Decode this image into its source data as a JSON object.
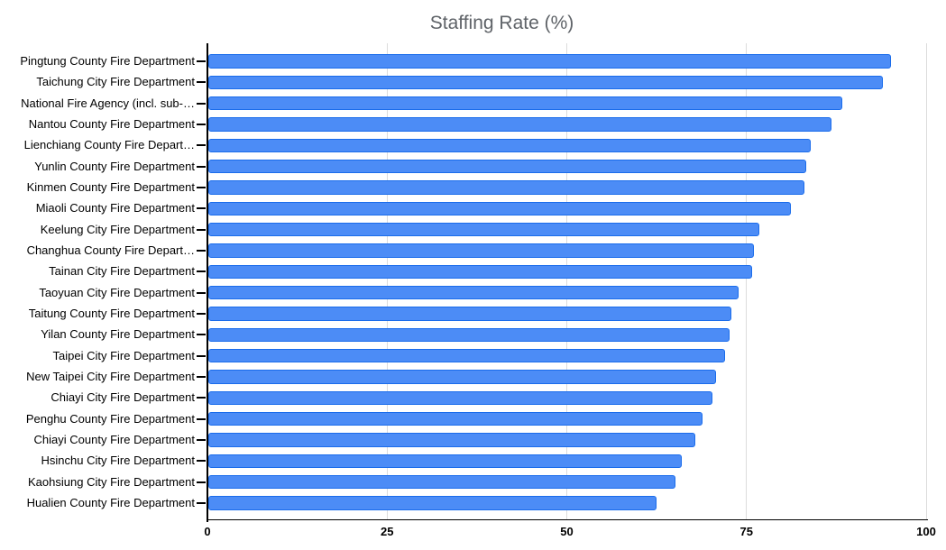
{
  "chart_data": {
    "type": "bar",
    "orientation": "horizontal",
    "title": "Staffing Rate (%)",
    "categories": [
      "Pingtung County Fire Department",
      "Taichung City Fire Department",
      "National Fire Agency (incl. sub-…",
      "Nantou County Fire Department",
      "Lienchiang County Fire Depart…",
      "Yunlin County Fire Department",
      "Kinmen County Fire Department",
      "Miaoli County Fire Department",
      "Keelung City Fire Department",
      "Changhua County Fire Depart…",
      "Tainan City Fire Department",
      "Taoyuan City Fire Department",
      "Taitung County Fire Department",
      "Yilan County Fire Department",
      "Taipei City Fire Department",
      "New Taipei City Fire Department",
      "Chiayi City Fire Department",
      "Penghu County Fire Department",
      "Chiayi County Fire Department",
      "Hsinchu City Fire Department",
      "Kaohsiung City Fire Department",
      "Hualien County Fire Department"
    ],
    "values": [
      95.0,
      93.8,
      88.2,
      86.7,
      83.8,
      83.2,
      82.9,
      81.0,
      76.6,
      75.9,
      75.7,
      73.8,
      72.8,
      72.5,
      71.9,
      70.6,
      70.1,
      68.8,
      67.7,
      65.9,
      65.0,
      62.3
    ],
    "xlabel": "",
    "ylabel": "",
    "xlim": [
      0,
      100
    ],
    "x_ticks": [
      "0",
      "25",
      "50",
      "75",
      "100"
    ],
    "x_tick_values": [
      0,
      25,
      50,
      75,
      100
    ],
    "grid": true,
    "legend": "none",
    "colors": {
      "bar_fill": "#4c8cf6",
      "bar_border": "#1a6ceb",
      "title": "#5f6368",
      "gridline": "#dcdcdc",
      "axis": "#000000",
      "labels": "#000000"
    }
  }
}
